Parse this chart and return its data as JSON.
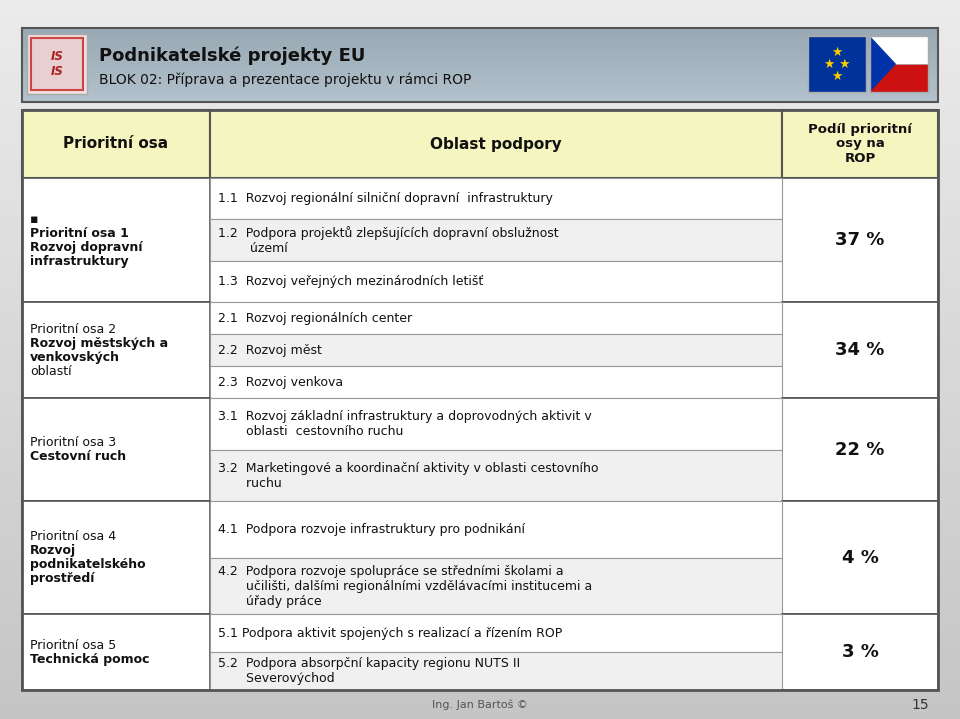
{
  "title_line1": "Podnikatelské projekty EU",
  "title_line2": "BLOK 02: Příprava a prezentace projektu v rámci ROP",
  "header_col1": "Prioritní osa",
  "header_col2": "Oblast podpory",
  "header_col3": "Podíl prioritní\nosy na\nROP",
  "rows": [
    {
      "priority_osa_lines": [
        "▪",
        "Prioritní osa 1",
        "Rozvoj dopravní",
        "infrastruktury"
      ],
      "priority_bold_idx": [
        1,
        2,
        3
      ],
      "oblast": [
        "1.1  Rozvoj regionální silniční dopravní  infrastruktury",
        "1.2  Podpora projektů zlepšujících dopravní obslužnost\n        území",
        "1.3  Rozvoj veřejných mezinárodních letišť"
      ],
      "podil": "37 %"
    },
    {
      "priority_osa_lines": [
        "Prioritní osa 2",
        "Rozvoj městských a",
        "venkovských",
        "oblastí"
      ],
      "priority_bold_idx": [
        1,
        2
      ],
      "oblast": [
        "2.1  Rozvoj regionálních center",
        "2.2  Rozvoj měst",
        "2.3  Rozvoj venkova"
      ],
      "podil": "34 %"
    },
    {
      "priority_osa_lines": [
        "Prioritní osa 3",
        "Cestovní ruch"
      ],
      "priority_bold_idx": [
        1
      ],
      "oblast": [
        "3.1  Rozvoj základní infrastruktury a doprovodných aktivit v\n       oblasti  cestovního ruchu",
        "3.2  Marketingové a koordinační aktivity v oblasti cestovního\n       ruchu"
      ],
      "podil": "22 %"
    },
    {
      "priority_osa_lines": [
        "Prioritní osa 4",
        "Rozvoj",
        "podnikatelského",
        "prostředí"
      ],
      "priority_bold_idx": [
        1,
        2,
        3
      ],
      "oblast": [
        "4.1  Podpora rozvoje infrastruktury pro podnikání",
        "4.2  Podpora rozvoje spolupráce se středními školami a\n       učilišti, dalšími regionálními vzdělávacími institucemi a\n       úřady práce"
      ],
      "podil": "4 %"
    },
    {
      "priority_osa_lines": [
        "Prioritní osa 5",
        "Technická pomoc"
      ],
      "priority_bold_idx": [
        1
      ],
      "oblast": [
        "5.1 Podpora aktivit spojených s realizací a řízením ROP",
        "5.2  Podpora absorpční kapacity regionu NUTS II\n       Severovýchod"
      ],
      "podil": "3 %"
    }
  ],
  "header_yellow": "#f5f5c0",
  "title_bg": "#a8b8c4",
  "page_bg_top": "#e0e0e0",
  "page_bg_bot": "#b0b0b0",
  "border_dark": "#555555",
  "border_light": "#999999",
  "footer_text": "Ing. Jan Bartoš ©",
  "page_num": "15",
  "section_heights": [
    130,
    100,
    108,
    118,
    79
  ]
}
